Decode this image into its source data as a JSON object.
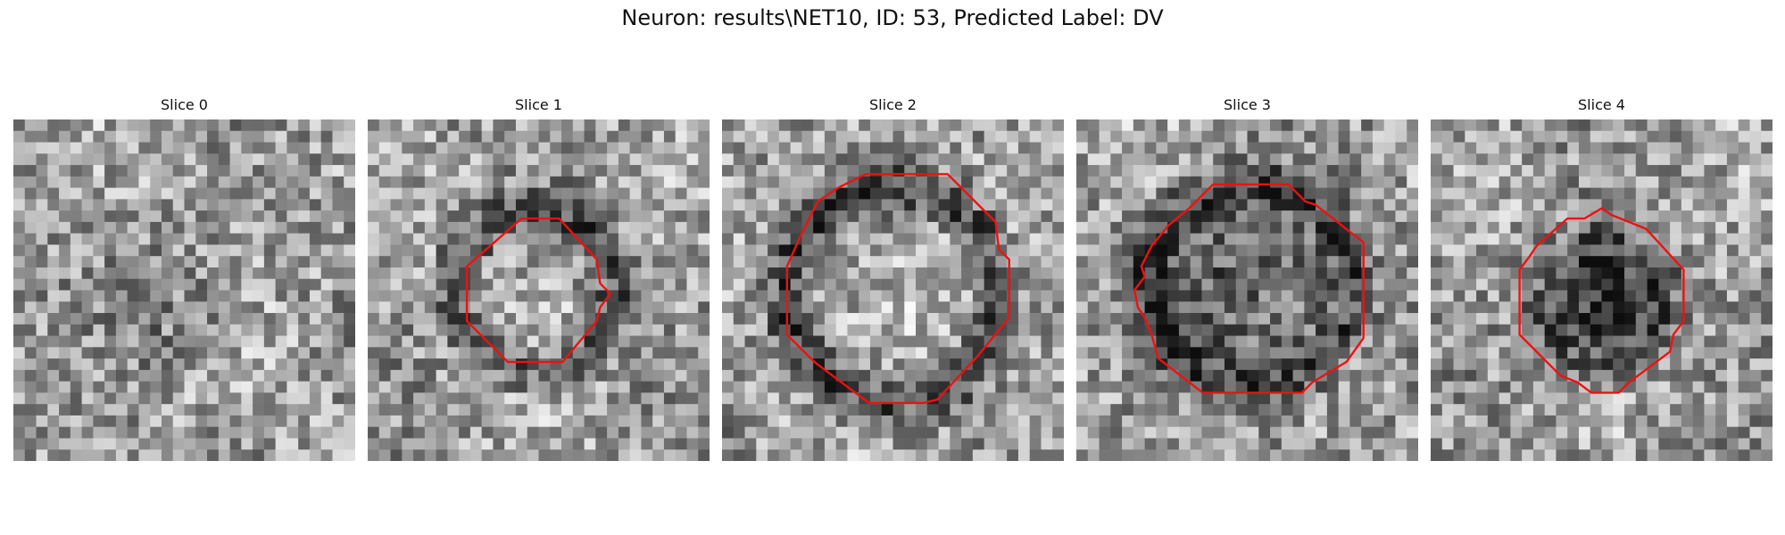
{
  "figure": {
    "title": "Neuron: results\\NET10, ID: 53, Predicted Label: DV"
  },
  "panels": [
    {
      "title": "Slice 0",
      "has_contour": false
    },
    {
      "title": "Slice 1",
      "has_contour": true
    },
    {
      "title": "Slice 2",
      "has_contour": true
    },
    {
      "title": "Slice 3",
      "has_contour": true
    },
    {
      "title": "Slice 4",
      "has_contour": true
    }
  ],
  "colors": {
    "contour": "#ee1111"
  }
}
